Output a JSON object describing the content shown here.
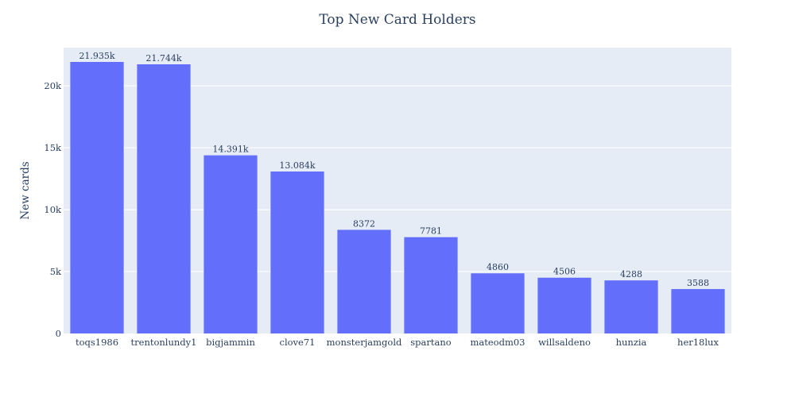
{
  "chart_data": {
    "type": "bar",
    "title": "Top New Card Holders",
    "xlabel": "",
    "ylabel": "New cards",
    "categories": [
      "toqs1986",
      "trentonlundy1",
      "bigjammin",
      "clove71",
      "monsterjamgold",
      "spartano",
      "mateodm03",
      "willsaldeno",
      "hunzia",
      "her18lux"
    ],
    "values": [
      21935,
      21744,
      14391,
      13084,
      8372,
      7781,
      4860,
      4506,
      4288,
      3588
    ],
    "data_labels": [
      "21.935k",
      "21.744k",
      "14.391k",
      "13.084k",
      "8372",
      "7781",
      "4860",
      "4506",
      "4288",
      "3588"
    ],
    "ylim": [
      0,
      23090
    ],
    "yticks": [
      0,
      5000,
      10000,
      15000,
      20000
    ],
    "ytick_labels": [
      "0",
      "5k",
      "10k",
      "15k",
      "20k"
    ],
    "grid": true,
    "colors": {
      "bar": "#636efa",
      "plot_bg": "#e5ecf6",
      "grid": "#ffffff",
      "text": "#2a3f5f"
    }
  }
}
